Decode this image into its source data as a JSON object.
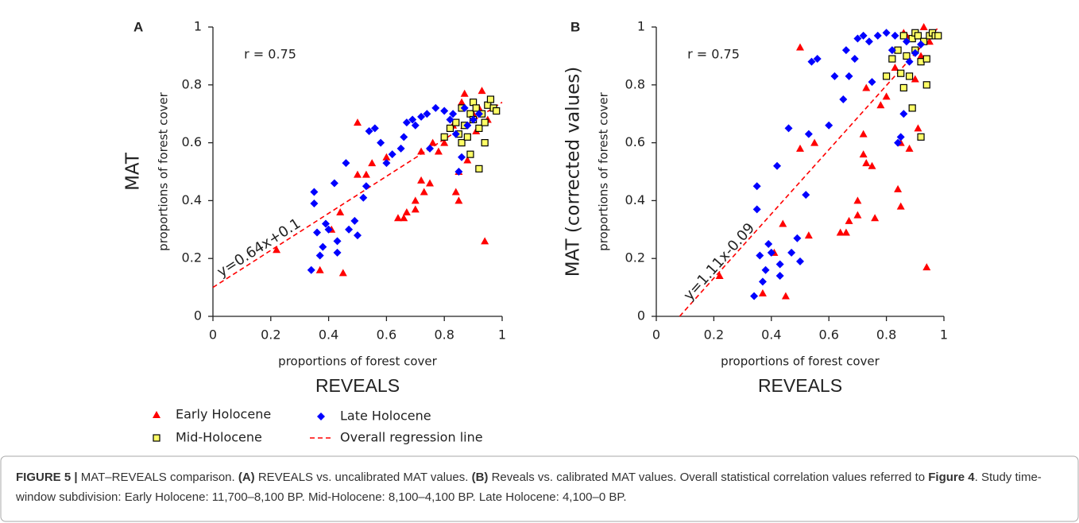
{
  "chart_data": [
    {
      "type": "scatter",
      "panel": "A",
      "ylabel": "MAT",
      "ylabel_sub": "proportions of forest cover",
      "xlabel": "proportions of forest cover",
      "xlabel_title": "REVEALS",
      "annotation": "r = 0.75",
      "xlim": [
        0,
        1
      ],
      "ylim": [
        0,
        1
      ],
      "xticks": [
        0,
        0.2,
        0.4,
        0.6,
        0.8,
        1
      ],
      "yticks": [
        0,
        0.2,
        0.4,
        0.6,
        0.8,
        1
      ],
      "regression": {
        "name": "Overall regression line",
        "label": "y=0.64x+0.1",
        "slope": 0.64,
        "intercept": 0.1,
        "color": "#ff0000"
      },
      "series": [
        {
          "name": "Early Holocene",
          "color": "#ff0000",
          "marker": "triangle",
          "x": [
            0.22,
            0.37,
            0.45,
            0.41,
            0.44,
            0.5,
            0.5,
            0.53,
            0.55,
            0.6,
            0.64,
            0.66,
            0.67,
            0.7,
            0.7,
            0.72,
            0.73,
            0.75,
            0.72,
            0.76,
            0.78,
            0.8,
            0.84,
            0.85,
            0.85,
            0.86,
            0.88,
            0.9,
            0.92,
            0.93,
            0.94,
            0.95,
            0.83,
            0.87,
            0.91
          ],
          "values": [
            0.23,
            0.16,
            0.15,
            0.3,
            0.36,
            0.49,
            0.67,
            0.49,
            0.53,
            0.55,
            0.34,
            0.34,
            0.36,
            0.37,
            0.4,
            0.47,
            0.43,
            0.46,
            0.57,
            0.6,
            0.57,
            0.6,
            0.43,
            0.4,
            0.5,
            0.74,
            0.54,
            0.7,
            0.72,
            0.78,
            0.26,
            0.68,
            0.66,
            0.77,
            0.64
          ]
        },
        {
          "name": "Mid-Holocene",
          "color": "#ffff66",
          "marker": "square",
          "x": [
            0.8,
            0.82,
            0.84,
            0.85,
            0.86,
            0.87,
            0.88,
            0.89,
            0.9,
            0.9,
            0.91,
            0.92,
            0.92,
            0.93,
            0.94,
            0.95,
            0.96,
            0.97,
            0.98,
            0.89,
            0.86,
            0.94
          ],
          "values": [
            0.62,
            0.65,
            0.67,
            0.63,
            0.6,
            0.66,
            0.62,
            0.7,
            0.68,
            0.74,
            0.72,
            0.51,
            0.65,
            0.7,
            0.6,
            0.73,
            0.75,
            0.72,
            0.71,
            0.56,
            0.72,
            0.67
          ]
        },
        {
          "name": "Late Holocene",
          "color": "#0000ff",
          "marker": "diamond",
          "x": [
            0.34,
            0.35,
            0.35,
            0.36,
            0.37,
            0.38,
            0.39,
            0.4,
            0.42,
            0.43,
            0.43,
            0.46,
            0.47,
            0.49,
            0.5,
            0.52,
            0.53,
            0.54,
            0.56,
            0.58,
            0.6,
            0.62,
            0.65,
            0.66,
            0.67,
            0.69,
            0.7,
            0.72,
            0.74,
            0.75,
            0.77,
            0.8,
            0.82,
            0.84,
            0.86,
            0.88,
            0.9,
            0.92,
            0.85,
            0.83,
            0.87
          ],
          "values": [
            0.16,
            0.39,
            0.43,
            0.29,
            0.21,
            0.24,
            0.32,
            0.3,
            0.46,
            0.22,
            0.26,
            0.53,
            0.3,
            0.33,
            0.28,
            0.41,
            0.45,
            0.64,
            0.65,
            0.6,
            0.53,
            0.56,
            0.58,
            0.62,
            0.67,
            0.68,
            0.66,
            0.69,
            0.7,
            0.58,
            0.72,
            0.71,
            0.68,
            0.63,
            0.55,
            0.66,
            0.68,
            0.7,
            0.5,
            0.7,
            0.72
          ]
        }
      ]
    },
    {
      "type": "scatter",
      "panel": "B",
      "ylabel": "MAT (corrected values)",
      "ylabel_sub": "proportions of forest cover",
      "xlabel": "proportions of forest cover",
      "xlabel_title": "REVEALS",
      "annotation": "r = 0.75",
      "xlim": [
        0,
        1
      ],
      "ylim": [
        0,
        1
      ],
      "xticks": [
        0,
        0.2,
        0.4,
        0.6,
        0.8,
        1
      ],
      "yticks": [
        0,
        0.2,
        0.4,
        0.6,
        0.8,
        1
      ],
      "regression": {
        "label": "y=1.11x-0.09",
        "slope": 1.11,
        "intercept": -0.09,
        "color": "#ff0000"
      },
      "series": [
        {
          "color": "#ff0000",
          "marker": "triangle",
          "x": [
            0.22,
            0.37,
            0.45,
            0.41,
            0.44,
            0.5,
            0.5,
            0.53,
            0.55,
            0.64,
            0.66,
            0.67,
            0.7,
            0.7,
            0.72,
            0.73,
            0.75,
            0.72,
            0.76,
            0.78,
            0.8,
            0.84,
            0.85,
            0.85,
            0.86,
            0.88,
            0.9,
            0.92,
            0.93,
            0.94,
            0.95,
            0.83,
            0.87,
            0.91,
            0.73
          ],
          "values": [
            0.14,
            0.08,
            0.07,
            0.22,
            0.32,
            0.58,
            0.93,
            0.28,
            0.6,
            0.29,
            0.29,
            0.33,
            0.35,
            0.4,
            0.56,
            0.53,
            0.52,
            0.63,
            0.34,
            0.73,
            0.76,
            0.44,
            0.38,
            0.6,
            0.98,
            0.58,
            0.82,
            0.9,
            1.0,
            0.17,
            0.95,
            0.86,
            0.97,
            0.65,
            0.79
          ]
        },
        {
          "color": "#ffff66",
          "marker": "square",
          "x": [
            0.8,
            0.82,
            0.84,
            0.85,
            0.86,
            0.87,
            0.88,
            0.89,
            0.9,
            0.9,
            0.91,
            0.92,
            0.92,
            0.93,
            0.94,
            0.95,
            0.96,
            0.97,
            0.98,
            0.89,
            0.86,
            0.94
          ],
          "values": [
            0.83,
            0.89,
            0.92,
            0.84,
            0.79,
            0.9,
            0.83,
            0.96,
            0.92,
            0.98,
            0.97,
            0.62,
            0.88,
            0.95,
            0.8,
            0.97,
            0.98,
            0.97,
            0.97,
            0.72,
            0.97,
            0.89
          ]
        },
        {
          "color": "#0000ff",
          "marker": "diamond",
          "x": [
            0.34,
            0.35,
            0.35,
            0.36,
            0.37,
            0.38,
            0.39,
            0.4,
            0.42,
            0.43,
            0.43,
            0.46,
            0.47,
            0.49,
            0.5,
            0.52,
            0.53,
            0.54,
            0.56,
            0.6,
            0.62,
            0.65,
            0.66,
            0.67,
            0.69,
            0.7,
            0.72,
            0.74,
            0.75,
            0.77,
            0.8,
            0.82,
            0.84,
            0.86,
            0.88,
            0.9,
            0.92,
            0.85,
            0.83,
            0.87
          ],
          "values": [
            0.07,
            0.37,
            0.45,
            0.21,
            0.12,
            0.16,
            0.25,
            0.22,
            0.52,
            0.14,
            0.18,
            0.65,
            0.22,
            0.27,
            0.19,
            0.42,
            0.63,
            0.88,
            0.89,
            0.66,
            0.83,
            0.75,
            0.92,
            0.83,
            0.89,
            0.96,
            0.97,
            0.95,
            0.81,
            0.97,
            0.98,
            0.92,
            0.6,
            0.7,
            0.88,
            0.91,
            0.94,
            0.62,
            0.97,
            0.95
          ]
        }
      ]
    }
  ],
  "caption": {
    "segments": [
      {
        "text": "FIGURE 5 |",
        "bold": true
      },
      {
        "text": " MAT–REVEALS comparison. ",
        "bold": false
      },
      {
        "text": "(A)",
        "bold": true
      },
      {
        "text": " REVEALS vs. uncalibrated MAT values. ",
        "bold": false
      },
      {
        "text": "(B)",
        "bold": true
      },
      {
        "text": " Reveals vs. calibrated MAT values. Overall statistical correlation values referred to ",
        "bold": false
      },
      {
        "text": "Figure 4",
        "bold": true
      },
      {
        "text": ". Study time-window subdivision: Early Holocene: 11,700–8,100 BP. Mid-Holocene: 8,100–4,100 BP. Late Holocene: 4,100–0 BP.",
        "bold": false
      }
    ]
  }
}
